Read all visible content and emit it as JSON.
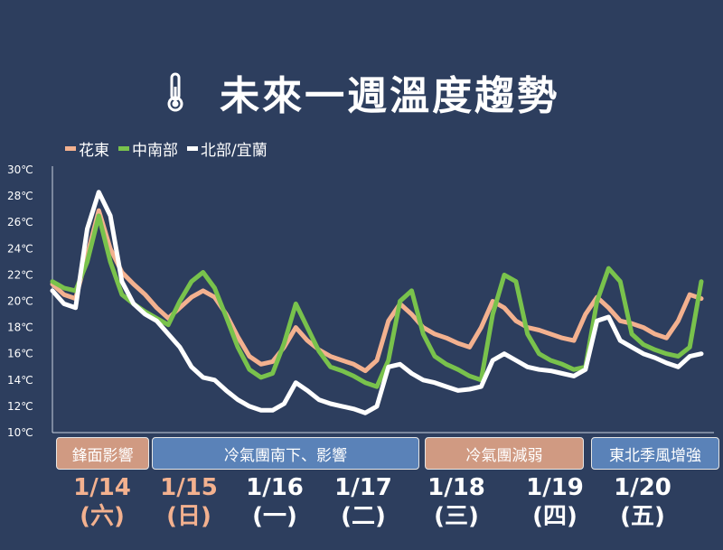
{
  "title": "未來一週溫度趨勢",
  "icon": "thermometer-icon",
  "colors": {
    "background": "#2d3e5e",
    "hualien": "#f3b18f",
    "central": "#79c24c",
    "north": "#ffffff",
    "warm_band": "#d09a82",
    "cold_band": "#5a82b8",
    "weekend_date": "#f3b18f",
    "weekday_date": "#ffffff"
  },
  "chart_data": {
    "type": "line",
    "title": "未來一週溫度趨勢",
    "xlabel": "",
    "ylabel": "",
    "ylim": [
      10,
      30
    ],
    "y_ticks": [
      "30℃",
      "28℃",
      "26℃",
      "24℃",
      "22℃",
      "20℃",
      "18℃",
      "16℃",
      "14℃",
      "12℃",
      "10℃"
    ],
    "legend_position": "top-left",
    "grid": false,
    "x": [
      0,
      1,
      2,
      3,
      4,
      5,
      6,
      7,
      8,
      9,
      10,
      11,
      12,
      13,
      14,
      15,
      16,
      17,
      18,
      19,
      20,
      21,
      22,
      23,
      24,
      25,
      26,
      27,
      28,
      29,
      30,
      31,
      32,
      33,
      34,
      35,
      36,
      37,
      38,
      39,
      40,
      41,
      42,
      43,
      44,
      45,
      46,
      47,
      48,
      49,
      50,
      51,
      52,
      53,
      54,
      55,
      56
    ],
    "series": [
      {
        "name": "花東",
        "values": [
          21.3,
          20.5,
          20.2,
          23.5,
          26.9,
          24.0,
          22.2,
          21.3,
          20.5,
          19.5,
          18.7,
          19.5,
          20.3,
          20.8,
          20.3,
          19.0,
          17.3,
          15.8,
          15.2,
          15.4,
          16.5,
          18.0,
          17.0,
          16.3,
          15.8,
          15.5,
          15.2,
          14.7,
          15.5,
          18.5,
          19.8,
          19.0,
          18.0,
          17.5,
          17.2,
          16.8,
          16.5,
          18.0,
          20.0,
          19.5,
          18.5,
          18.0,
          17.8,
          17.5,
          17.2,
          17.0,
          19.0,
          20.3,
          19.5,
          18.5,
          18.3,
          18.0,
          17.5,
          17.2,
          18.5,
          20.5,
          20.2
        ]
      },
      {
        "name": "中南部",
        "values": [
          21.5,
          21.0,
          20.8,
          23.0,
          26.5,
          23.0,
          20.5,
          19.8,
          19.2,
          18.7,
          18.2,
          20.0,
          21.5,
          22.2,
          21.0,
          18.8,
          16.5,
          14.8,
          14.2,
          14.5,
          16.8,
          19.8,
          18.0,
          16.2,
          15.0,
          14.7,
          14.3,
          13.8,
          13.5,
          15.5,
          20.0,
          20.8,
          17.5,
          15.8,
          15.2,
          14.8,
          14.3,
          14.0,
          19.0,
          22.0,
          21.5,
          17.5,
          16.0,
          15.5,
          15.2,
          14.8,
          15.0,
          20.0,
          22.5,
          21.5,
          17.5,
          16.7,
          16.3,
          16.0,
          15.8,
          16.5,
          21.5
        ]
      },
      {
        "name": "北部/宜蘭",
        "values": [
          20.8,
          19.8,
          19.5,
          25.5,
          28.3,
          26.5,
          21.5,
          19.8,
          19.0,
          18.5,
          17.5,
          16.5,
          15.0,
          14.2,
          14.0,
          13.2,
          12.5,
          12.0,
          11.7,
          11.7,
          12.2,
          13.8,
          13.2,
          12.5,
          12.2,
          12.0,
          11.8,
          11.5,
          12.0,
          15.0,
          15.2,
          14.5,
          14.0,
          13.8,
          13.5,
          13.2,
          13.3,
          13.5,
          15.5,
          16.0,
          15.5,
          15.0,
          14.8,
          14.7,
          14.5,
          14.3,
          14.8,
          18.5,
          18.8,
          17.0,
          16.5,
          16.0,
          15.7,
          15.3,
          15.0,
          15.8,
          16.0
        ]
      }
    ]
  },
  "bands": [
    {
      "label": "鋒面影響",
      "style": "warm"
    },
    {
      "label": "冷氣團南下、影響",
      "style": "cold"
    },
    {
      "label": "冷氣團減弱",
      "style": "warm"
    },
    {
      "label": "東北季風增強",
      "style": "cold"
    }
  ],
  "days": [
    {
      "date": "1/14",
      "weekday": "(六)",
      "weekend": true
    },
    {
      "date": "1/15",
      "weekday": "(日)",
      "weekend": true
    },
    {
      "date": "1/16",
      "weekday": "(一)",
      "weekend": false
    },
    {
      "date": "1/17",
      "weekday": "(二)",
      "weekend": false
    },
    {
      "date": "1/18",
      "weekday": "(三)",
      "weekend": false
    },
    {
      "date": "1/19",
      "weekday": "(四)",
      "weekend": false
    },
    {
      "date": "1/20",
      "weekday": "(五)",
      "weekend": false
    }
  ]
}
